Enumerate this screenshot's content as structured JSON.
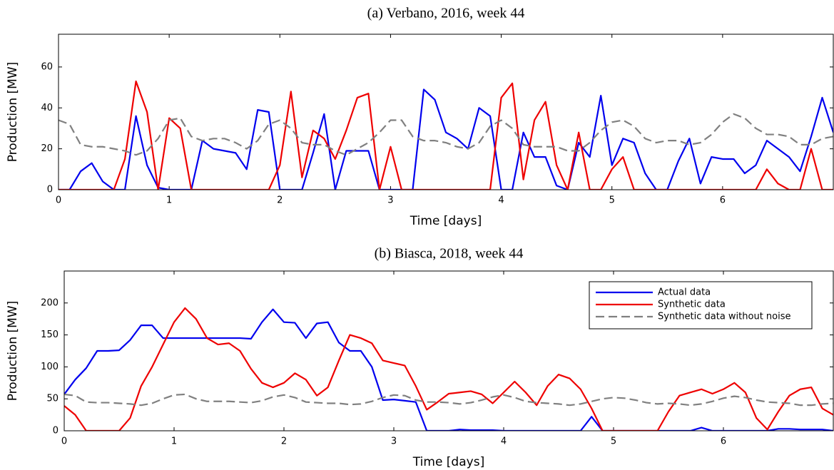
{
  "chart_data": [
    {
      "type": "line",
      "title": "(a) Verbano, 2016, week 44",
      "x_label": "Time [days]",
      "y_label": "Production [MW]",
      "x": [
        0,
        0.1,
        0.2,
        0.3,
        0.4,
        0.5,
        0.6,
        0.7,
        0.8,
        0.9,
        1,
        1.1,
        1.2,
        1.3,
        1.4,
        1.5,
        1.6,
        1.7,
        1.8,
        1.9,
        2,
        2.1,
        2.2,
        2.3,
        2.4,
        2.5,
        2.6,
        2.7,
        2.8,
        2.9,
        3,
        3.1,
        3.2,
        3.3,
        3.4,
        3.5,
        3.6,
        3.7,
        3.8,
        3.9,
        4,
        4.1,
        4.2,
        4.3,
        4.4,
        4.5,
        4.6,
        4.7,
        4.8,
        4.9,
        5,
        5.1,
        5.2,
        5.3,
        5.4,
        5.5,
        5.6,
        5.7,
        5.8,
        5.9,
        6,
        6.1,
        6.2,
        6.3,
        6.4,
        6.5,
        6.6,
        6.7,
        6.8,
        6.9,
        7
      ],
      "xlim": [
        0,
        7
      ],
      "xticks": [
        0,
        1,
        2,
        3,
        4,
        5,
        6
      ],
      "ylim": [
        0,
        76
      ],
      "yticks": [
        0,
        20,
        40,
        60
      ],
      "legend": false,
      "series": [
        {
          "color": "#0000ee",
          "linestyle": "solid",
          "values": [
            0,
            0,
            9,
            13,
            4,
            0,
            0,
            36,
            12,
            1,
            0,
            0,
            0,
            24,
            20,
            19,
            18,
            10,
            39,
            38,
            0,
            0,
            0,
            18,
            37,
            0,
            19,
            19,
            19,
            0,
            0,
            0,
            0,
            49,
            44,
            28,
            25,
            20,
            40,
            36,
            0,
            0,
            28,
            16,
            16,
            2,
            0,
            23,
            16,
            46,
            12,
            25,
            23,
            8,
            0,
            0,
            14,
            25,
            3,
            16,
            15,
            15,
            8,
            12,
            24,
            20,
            16,
            9,
            26,
            45,
            28
          ]
        },
        {
          "color": "#ee0000",
          "linestyle": "solid",
          "values": [
            0,
            0,
            0,
            0,
            0,
            0,
            15,
            53,
            38,
            0,
            35,
            30,
            0,
            0,
            0,
            0,
            0,
            0,
            0,
            0,
            12,
            48,
            6,
            29,
            25,
            15,
            29,
            45,
            47,
            0,
            21,
            0,
            0,
            0,
            0,
            0,
            0,
            0,
            0,
            0,
            45,
            52,
            5,
            34,
            43,
            12,
            0,
            28,
            0,
            0,
            10,
            16,
            0,
            0,
            0,
            0,
            0,
            0,
            0,
            0,
            0,
            0,
            0,
            0,
            10,
            3,
            0,
            0,
            20,
            0,
            0
          ]
        },
        {
          "color": "#808080",
          "linestyle": "dashed",
          "values": [
            34,
            32,
            22,
            21,
            21,
            20,
            19,
            17,
            19,
            25,
            34,
            35,
            26,
            24,
            25,
            25,
            23,
            20,
            24,
            32,
            34,
            30,
            23,
            22,
            22,
            19,
            17,
            20,
            23,
            28,
            34,
            34,
            26,
            24,
            24,
            23,
            21,
            20,
            23,
            31,
            34,
            30,
            22,
            21,
            21,
            21,
            19,
            19,
            23,
            29,
            33,
            34,
            31,
            25,
            23,
            24,
            24,
            22,
            23,
            27,
            33,
            37,
            35,
            30,
            27,
            27,
            26,
            22,
            22,
            25,
            26
          ]
        }
      ]
    },
    {
      "type": "line",
      "title": "(b) Biasca, 2018, week 44",
      "x_label": "Time [days]",
      "y_label": "Production [MW]",
      "x": [
        0,
        0.1,
        0.2,
        0.3,
        0.4,
        0.5,
        0.6,
        0.7,
        0.8,
        0.9,
        1,
        1.1,
        1.2,
        1.3,
        1.4,
        1.5,
        1.6,
        1.7,
        1.8,
        1.9,
        2,
        2.1,
        2.2,
        2.3,
        2.4,
        2.5,
        2.6,
        2.7,
        2.8,
        2.9,
        3,
        3.1,
        3.2,
        3.3,
        3.4,
        3.5,
        3.6,
        3.7,
        3.8,
        3.9,
        4,
        4.1,
        4.2,
        4.3,
        4.4,
        4.5,
        4.6,
        4.7,
        4.8,
        4.9,
        5,
        5.1,
        5.2,
        5.3,
        5.4,
        5.5,
        5.6,
        5.7,
        5.8,
        5.9,
        6,
        6.1,
        6.2,
        6.3,
        6.4,
        6.5,
        6.6,
        6.7,
        6.8,
        6.9,
        7
      ],
      "xlim": [
        0,
        7
      ],
      "xticks": [
        0,
        1,
        2,
        3,
        4,
        5,
        6
      ],
      "ylim": [
        0,
        250
      ],
      "yticks": [
        0,
        50,
        100,
        150,
        200
      ],
      "legend": true,
      "legend_loc": "upper right",
      "series": [
        {
          "name": "Actual data",
          "color": "#0000ee",
          "linestyle": "solid",
          "values": [
            57,
            80,
            98,
            125,
            125,
            126,
            142,
            165,
            165,
            145,
            145,
            145,
            145,
            145,
            145,
            145,
            145,
            144,
            170,
            190,
            170,
            169,
            145,
            168,
            170,
            138,
            125,
            125,
            100,
            48,
            49,
            47,
            45,
            0,
            0,
            0,
            2,
            1,
            1,
            1,
            0,
            0,
            0,
            0,
            0,
            0,
            0,
            0,
            22,
            0,
            0,
            0,
            0,
            0,
            0,
            0,
            0,
            0,
            5,
            0,
            0,
            0,
            0,
            0,
            0,
            3,
            3,
            2,
            2,
            2,
            0
          ]
        },
        {
          "name": "Synthetic data",
          "color": "#ee0000",
          "linestyle": "solid",
          "values": [
            39,
            25,
            0,
            0,
            0,
            0,
            20,
            70,
            100,
            135,
            170,
            192,
            175,
            145,
            135,
            137,
            125,
            97,
            75,
            68,
            75,
            90,
            80,
            55,
            68,
            110,
            150,
            145,
            137,
            110,
            106,
            102,
            70,
            33,
            45,
            58,
            60,
            62,
            57,
            43,
            60,
            77,
            60,
            40,
            70,
            88,
            82,
            65,
            35,
            0,
            0,
            0,
            0,
            0,
            0,
            30,
            55,
            60,
            65,
            58,
            65,
            75,
            60,
            20,
            2,
            30,
            55,
            65,
            68,
            35,
            25
          ]
        },
        {
          "name": "Synthetic data without noise",
          "color": "#808080",
          "linestyle": "dashed",
          "values": [
            57,
            55,
            45,
            44,
            44,
            43,
            42,
            40,
            43,
            50,
            56,
            57,
            50,
            46,
            46,
            46,
            45,
            44,
            47,
            53,
            56,
            52,
            45,
            44,
            43,
            43,
            41,
            42,
            46,
            52,
            56,
            55,
            48,
            45,
            45,
            44,
            42,
            44,
            48,
            53,
            56,
            52,
            46,
            44,
            43,
            42,
            40,
            42,
            46,
            50,
            52,
            51,
            48,
            44,
            42,
            43,
            42,
            40,
            42,
            46,
            51,
            54,
            52,
            48,
            45,
            44,
            43,
            40,
            40,
            42,
            43
          ]
        }
      ]
    }
  ]
}
